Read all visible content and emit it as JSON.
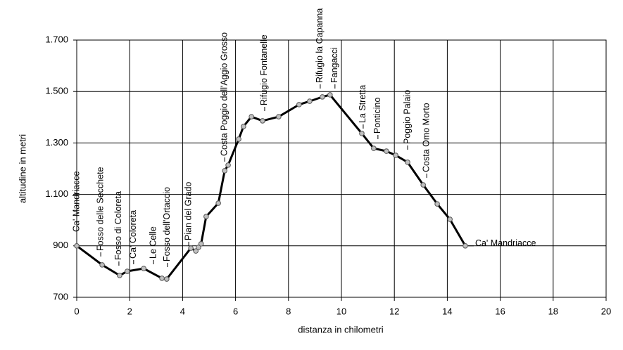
{
  "chart_data": {
    "type": "line",
    "x_label": "distanza in chilometri",
    "y_label": "altitudine  in metri",
    "x": [
      0,
      0.96,
      1.62,
      1.91,
      2.53,
      3.22,
      3.4,
      4.31,
      4.5,
      4.6,
      4.7,
      4.89,
      5.35,
      5.59,
      5.72,
      6.12,
      6.3,
      6.6,
      7.02,
      7.63,
      8.4,
      8.8,
      9.28,
      9.57,
      10.77,
      11.22,
      11.7,
      12.05,
      12.5,
      13.09,
      13.62,
      14.1,
      14.68
    ],
    "values": [
      900,
      826,
      785,
      801,
      812,
      774,
      771,
      891,
      880,
      894,
      908,
      1014,
      1066,
      1192,
      1214,
      1315,
      1364,
      1402,
      1386,
      1402,
      1449,
      1462,
      1479,
      1487,
      1337,
      1279,
      1268,
      1252,
      1225,
      1137,
      1063,
      1003,
      900
    ],
    "point_labels": [
      "Ca' Mandriacce",
      "Fosso delle Secchete",
      "Fosso di Coloreta",
      "Ca' Coloreta",
      "Le Celle",
      null,
      "Fosso dell'Ortaccio",
      "Pian del Grado",
      null,
      null,
      null,
      null,
      null,
      "Costa Poggio dell'Aggio Grosso",
      null,
      null,
      null,
      null,
      "Rifugio Fontanelle",
      null,
      null,
      null,
      "Rifugio la Capanna",
      "Fangacci",
      "La Stretta",
      "Ponticino",
      null,
      null,
      "Poggio Palaio",
      "Costa Omo Morto",
      null,
      null,
      "Ca' Mandriacce"
    ],
    "color": "#000000",
    "marker_color": "#c0c0c0",
    "xlim": [
      0,
      20
    ],
    "xticks": [
      0,
      2,
      4,
      6,
      8,
      10,
      12,
      14,
      16,
      18,
      20
    ],
    "ylim": [
      700,
      1700
    ],
    "yticks": [
      700,
      900,
      {
        "value": 1100,
        "label": "1.100"
      },
      {
        "value": 1300,
        "label": "1.300"
      },
      {
        "value": 1500,
        "label": "1.500"
      },
      {
        "value": 1700,
        "label": "1.700"
      }
    ],
    "grid": true
  }
}
